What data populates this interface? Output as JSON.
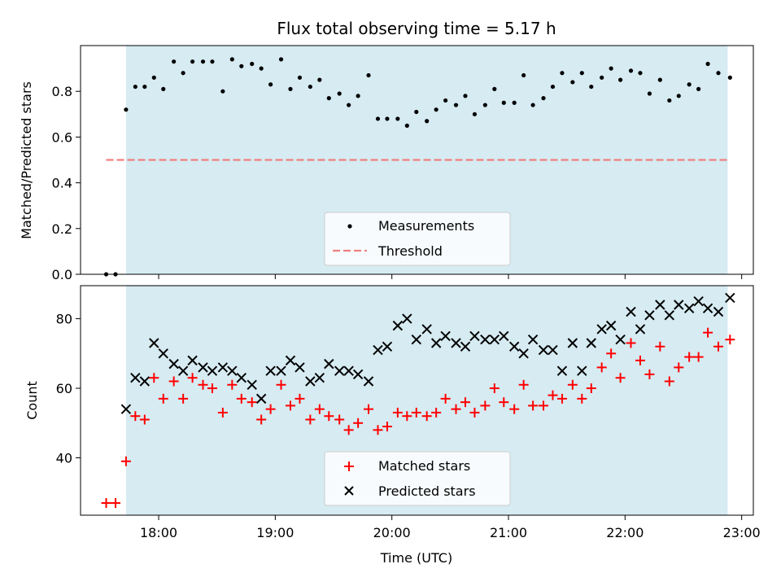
{
  "chart_data": {
    "type": "scatter",
    "title": "Flux total observing time = 5.17 h",
    "xlabel": "Time (UTC)",
    "x_unit": "hours UTC (decimal)",
    "xlim": [
      17.33,
      23.1
    ],
    "xticks": [
      {
        "value": 18,
        "label": "18:00"
      },
      {
        "value": 19,
        "label": "19:00"
      },
      {
        "value": 20,
        "label": "20:00"
      },
      {
        "value": 21,
        "label": "21:00"
      },
      {
        "value": 22,
        "label": "22:00"
      },
      {
        "value": 23,
        "label": "23:00"
      }
    ],
    "shaded_span": [
      17.72,
      22.88
    ],
    "shade_color": "#add8e6",
    "top": {
      "ylabel": "Matched/Predicted stars",
      "ylim": [
        0,
        1.0
      ],
      "yticks": [
        {
          "value": 0.0,
          "label": "0.0"
        },
        {
          "value": 0.2,
          "label": "0.2"
        },
        {
          "value": 0.4,
          "label": "0.4"
        },
        {
          "value": 0.6,
          "label": "0.6"
        },
        {
          "value": 0.8,
          "label": "0.8"
        }
      ],
      "threshold": {
        "name": "Threshold",
        "value": 0.5,
        "x_range": [
          17.55,
          22.88
        ],
        "color": "#f08080"
      },
      "measurements": {
        "name": "Measurements",
        "color": "#000000",
        "x": [
          17.55,
          17.63,
          17.72,
          17.8,
          17.88,
          17.96,
          18.04,
          18.13,
          18.21,
          18.29,
          18.38,
          18.46,
          18.55,
          18.63,
          18.71,
          18.8,
          18.88,
          18.96,
          19.05,
          19.13,
          19.21,
          19.3,
          19.38,
          19.46,
          19.55,
          19.63,
          19.71,
          19.8,
          19.88,
          19.96,
          20.05,
          20.13,
          20.21,
          20.3,
          20.38,
          20.46,
          20.55,
          20.63,
          20.71,
          20.8,
          20.88,
          20.96,
          21.05,
          21.13,
          21.21,
          21.3,
          21.38,
          21.46,
          21.55,
          21.63,
          21.71,
          21.8,
          21.88,
          21.96,
          22.05,
          22.13,
          22.21,
          22.3,
          22.38,
          22.46,
          22.55,
          22.63,
          22.71,
          22.8,
          22.9
        ],
        "y": [
          0.0,
          0.0,
          0.72,
          0.82,
          0.82,
          0.86,
          0.81,
          0.93,
          0.88,
          0.93,
          0.93,
          0.93,
          0.8,
          0.94,
          0.91,
          0.92,
          0.9,
          0.83,
          0.94,
          0.81,
          0.86,
          0.82,
          0.85,
          0.77,
          0.79,
          0.74,
          0.78,
          0.87,
          0.68,
          0.68,
          0.68,
          0.65,
          0.71,
          0.67,
          0.72,
          0.76,
          0.74,
          0.78,
          0.7,
          0.74,
          0.81,
          0.75,
          0.75,
          0.87,
          0.74,
          0.77,
          0.82,
          0.88,
          0.84,
          0.88,
          0.82,
          0.86,
          0.9,
          0.85,
          0.89,
          0.88,
          0.79,
          0.85,
          0.76,
          0.78,
          0.83,
          0.81,
          0.92,
          0.88,
          0.86
        ]
      }
    },
    "bottom": {
      "ylabel": "Count",
      "ylim": [
        23.5,
        89.5
      ],
      "yticks": [
        {
          "value": 40,
          "label": "40"
        },
        {
          "value": 60,
          "label": "60"
        },
        {
          "value": 80,
          "label": "80"
        }
      ],
      "series": [
        {
          "name": "Matched stars",
          "marker": "plus",
          "color": "#ff0000",
          "x": [
            17.55,
            17.63,
            17.72,
            17.8,
            17.88,
            17.96,
            18.04,
            18.13,
            18.21,
            18.29,
            18.38,
            18.46,
            18.55,
            18.63,
            18.71,
            18.8,
            18.88,
            18.96,
            19.05,
            19.13,
            19.21,
            19.3,
            19.38,
            19.46,
            19.55,
            19.63,
            19.71,
            19.8,
            19.88,
            19.96,
            20.05,
            20.13,
            20.21,
            20.3,
            20.38,
            20.46,
            20.55,
            20.63,
            20.71,
            20.8,
            20.88,
            20.96,
            21.05,
            21.13,
            21.21,
            21.3,
            21.38,
            21.46,
            21.55,
            21.63,
            21.71,
            21.8,
            21.88,
            21.96,
            22.05,
            22.13,
            22.21,
            22.3,
            22.38,
            22.46,
            22.55,
            22.63,
            22.71,
            22.8,
            22.9
          ],
          "y": [
            27,
            27,
            39,
            52,
            51,
            63,
            57,
            62,
            57,
            63,
            61,
            60,
            53,
            61,
            57,
            56,
            51,
            54,
            61,
            55,
            57,
            51,
            54,
            52,
            51,
            48,
            50,
            54,
            48,
            49,
            53,
            52,
            53,
            52,
            53,
            57,
            54,
            56,
            53,
            55,
            60,
            56,
            54,
            61,
            55,
            55,
            58,
            57,
            61,
            57,
            60,
            66,
            70,
            63,
            73,
            68,
            64,
            72,
            62,
            66,
            69,
            69,
            76,
            72,
            74
          ]
        },
        {
          "name": "Predicted stars",
          "marker": "x",
          "color": "#000000",
          "x": [
            17.72,
            17.8,
            17.88,
            17.96,
            18.04,
            18.13,
            18.21,
            18.29,
            18.38,
            18.46,
            18.55,
            18.63,
            18.71,
            18.8,
            18.88,
            18.96,
            19.05,
            19.13,
            19.21,
            19.3,
            19.38,
            19.46,
            19.55,
            19.63,
            19.71,
            19.8,
            19.88,
            19.96,
            20.05,
            20.13,
            20.21,
            20.3,
            20.38,
            20.46,
            20.55,
            20.63,
            20.71,
            20.8,
            20.88,
            20.96,
            21.05,
            21.13,
            21.21,
            21.3,
            21.38,
            21.46,
            21.55,
            21.63,
            21.71,
            21.8,
            21.88,
            21.96,
            22.05,
            22.13,
            22.21,
            22.3,
            22.38,
            22.46,
            22.55,
            22.63,
            22.71,
            22.8,
            22.9
          ],
          "y": [
            54,
            63,
            62,
            73,
            70,
            67,
            65,
            68,
            66,
            65,
            66,
            65,
            63,
            61,
            57,
            65,
            65,
            68,
            66,
            62,
            63,
            67,
            65,
            65,
            64,
            62,
            71,
            72,
            78,
            80,
            74,
            77,
            73,
            75,
            73,
            72,
            75,
            74,
            74,
            75,
            72,
            70,
            74,
            71,
            71,
            65,
            73,
            65,
            73,
            77,
            78,
            74,
            82,
            77,
            81,
            84,
            81,
            84,
            83,
            85,
            83,
            82,
            86
          ]
        }
      ]
    }
  }
}
